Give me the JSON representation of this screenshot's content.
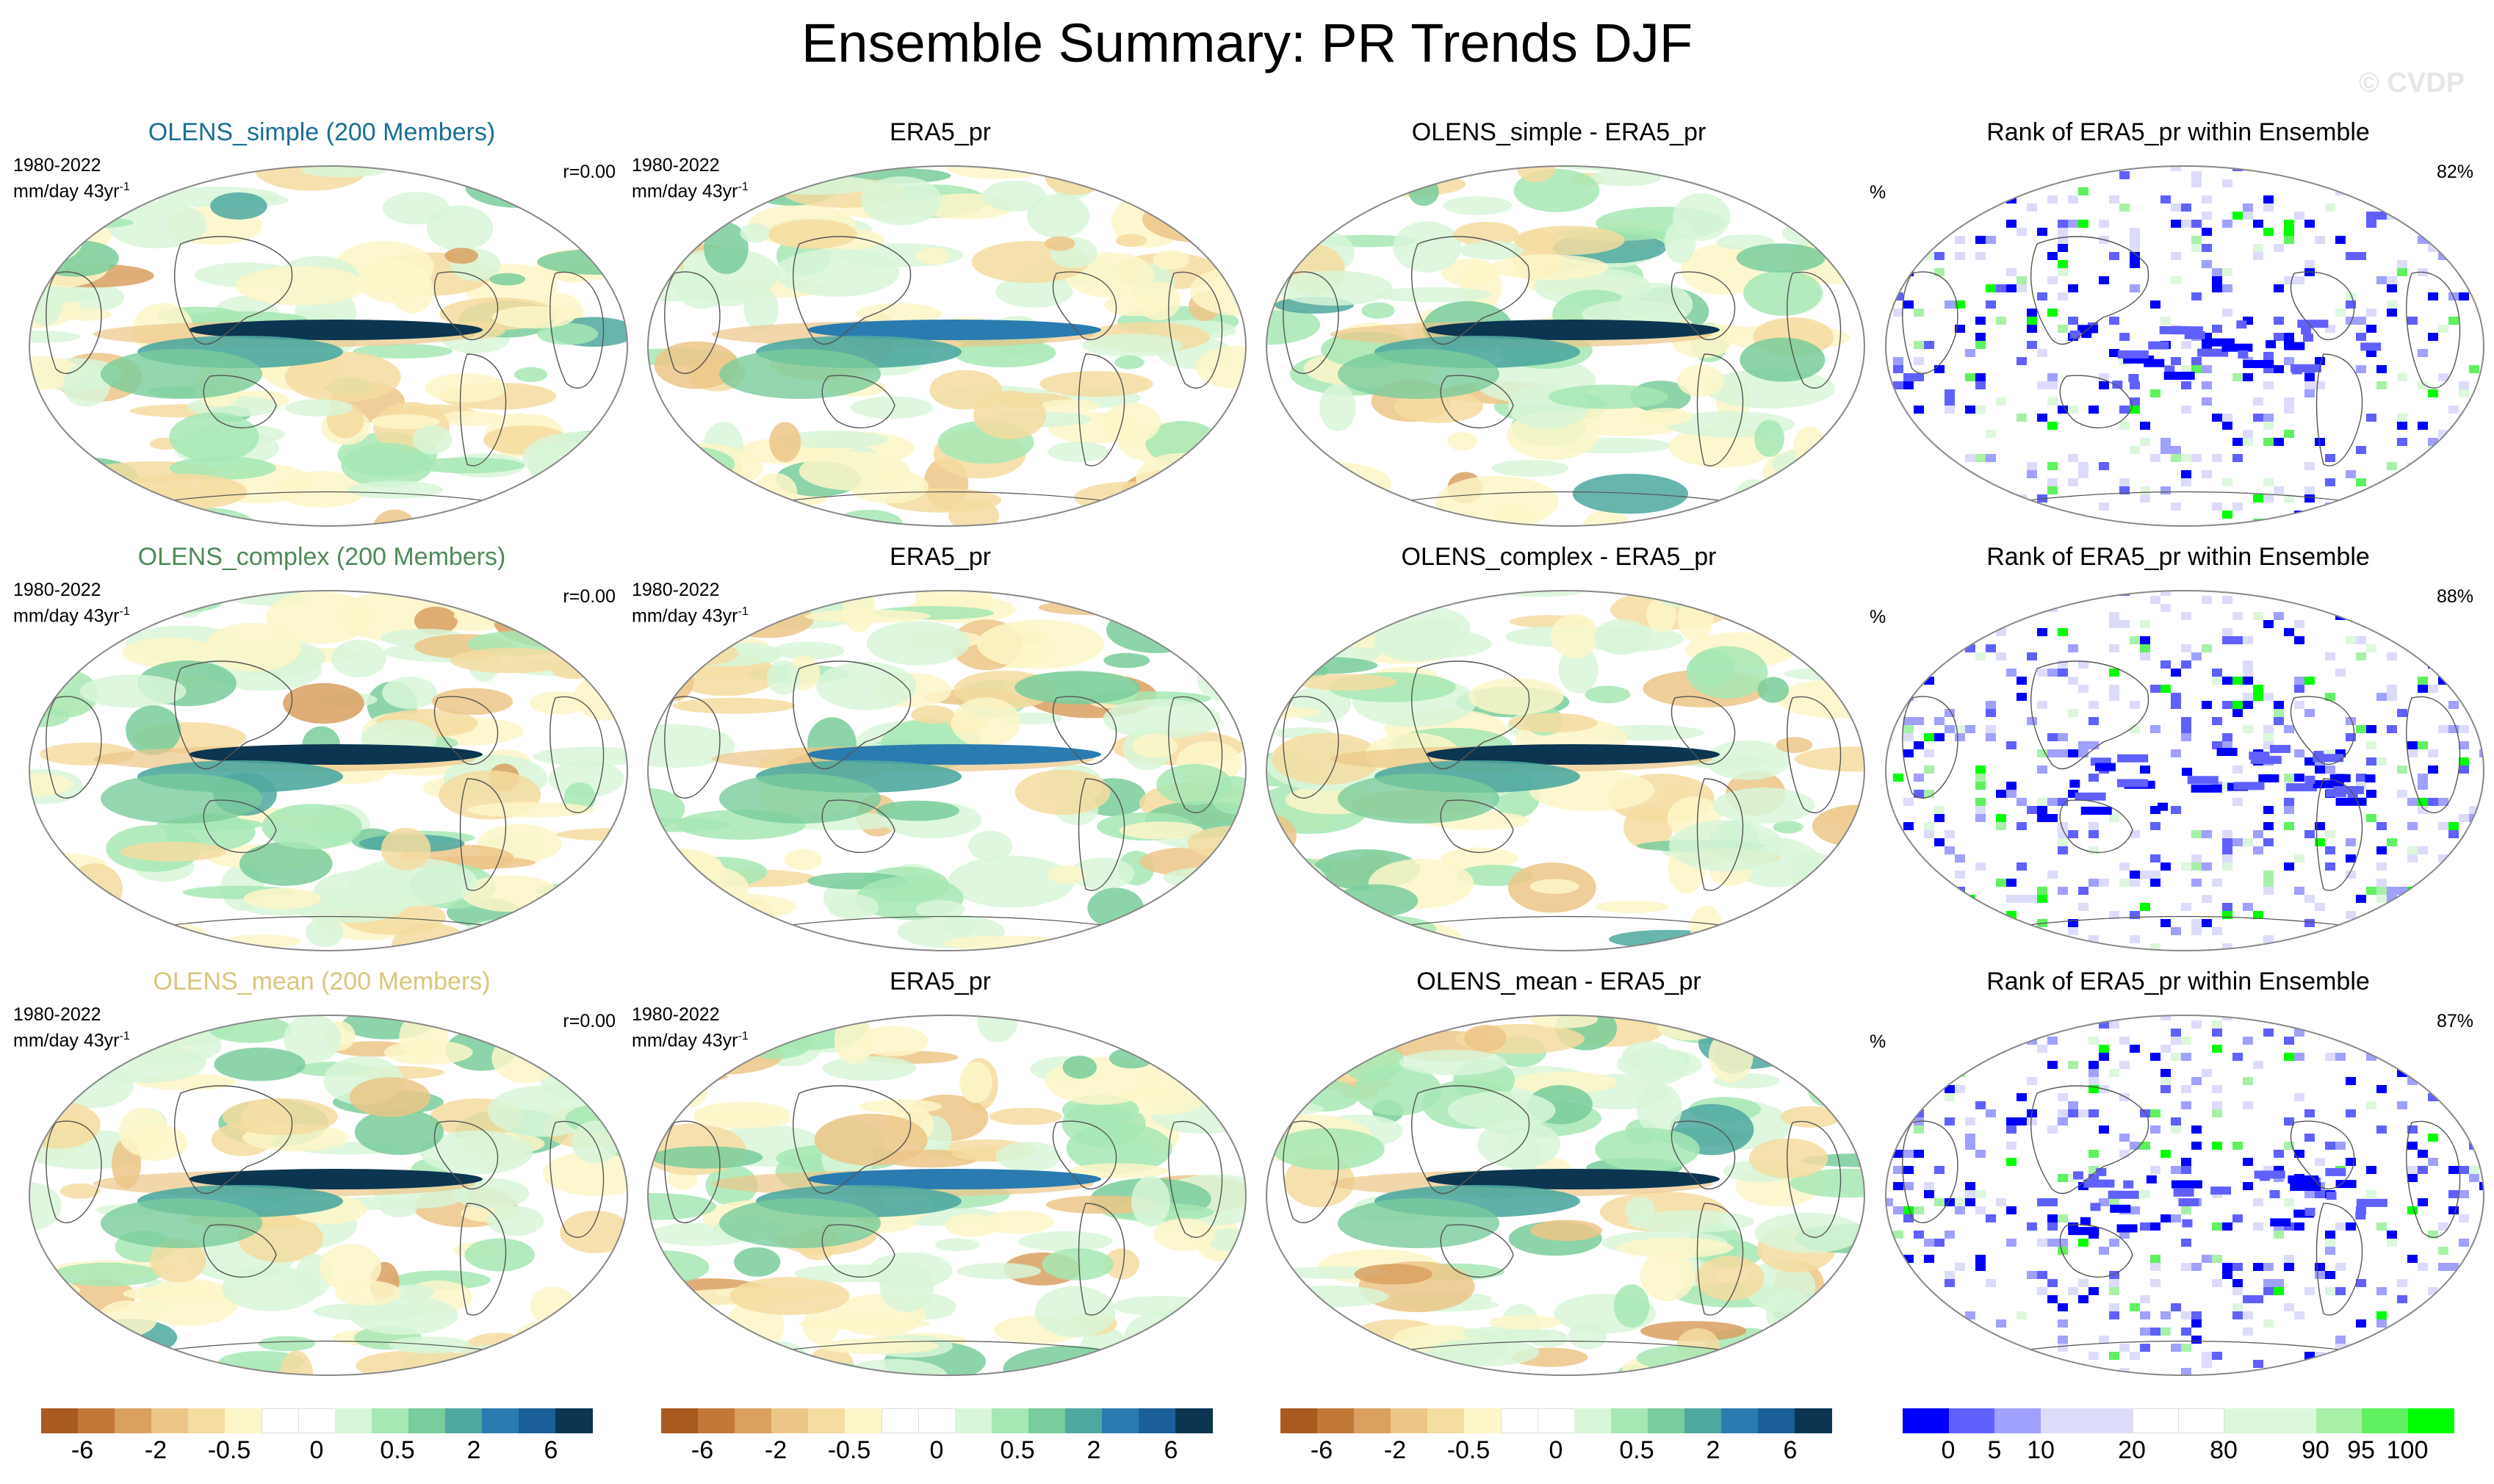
{
  "page": {
    "title": "Ensemble Summary: PR Trends DJF",
    "watermark": "© CVDP"
  },
  "colors": {
    "title_simple": "#1a6e94",
    "title_complex": "#4e8a5a",
    "title_mean": "#d8c77a",
    "land_outline": "#555555",
    "map_border": "#888888"
  },
  "rows": [
    {
      "model": {
        "title": "OLENS_simple (200 Members)",
        "period": "1980-2022",
        "units": "mm/day 43yr",
        "units_sup": "-1",
        "corr": "r=0.00",
        "title_color": "#1a6e94"
      },
      "obs": {
        "title": "ERA5_pr",
        "period": "1980-2022",
        "units": "mm/day 43yr",
        "units_sup": "-1"
      },
      "diff": {
        "title": "OLENS_simple - ERA5_pr"
      },
      "rank": {
        "title": "Rank of ERA5_pr within Ensemble",
        "unit": "%",
        "pct": "82%"
      }
    },
    {
      "model": {
        "title": "OLENS_complex (200 Members)",
        "period": "1980-2022",
        "units": "mm/day 43yr",
        "units_sup": "-1",
        "corr": "r=0.00",
        "title_color": "#4e8a5a"
      },
      "obs": {
        "title": "ERA5_pr",
        "period": "1980-2022",
        "units": "mm/day 43yr",
        "units_sup": "-1"
      },
      "diff": {
        "title": "OLENS_complex - ERA5_pr"
      },
      "rank": {
        "title": "Rank of ERA5_pr within Ensemble",
        "unit": "%",
        "pct": "88%"
      }
    },
    {
      "model": {
        "title": "OLENS_mean (200 Members)",
        "period": "1980-2022",
        "units": "mm/day 43yr",
        "units_sup": "-1",
        "corr": "r=0.00",
        "title_color": "#d8c77a"
      },
      "obs": {
        "title": "ERA5_pr",
        "period": "1980-2022",
        "units": "mm/day 43yr",
        "units_sup": "-1"
      },
      "diff": {
        "title": "OLENS_mean - ERA5_pr"
      },
      "rank": {
        "title": "Rank of ERA5_pr within Ensemble",
        "unit": "%",
        "pct": "87%"
      }
    }
  ],
  "colorbars": {
    "trend": {
      "colors": [
        "#a85a1f",
        "#c27837",
        "#d9a060",
        "#ecc687",
        "#f5dca0",
        "#fdf6c8",
        "#ffffff",
        "#ffffff",
        "#d8f6d8",
        "#a6e8b4",
        "#79cc9b",
        "#4ea8a0",
        "#2a7bb0",
        "#1a5f98",
        "#0b3550"
      ],
      "tick_labels": [
        "-6",
        "-2",
        "-0.5",
        "0",
        "0.5",
        "2",
        "6"
      ]
    },
    "rank": {
      "colors": [
        "#0000ff",
        "#6060ff",
        "#a0a0ff",
        "#dcdcfa",
        "#dcdcfa",
        "#ffffff",
        "#ffffff",
        "#dcf7dc",
        "#dcf7dc",
        "#a8f0a8",
        "#60f060",
        "#00ff00"
      ],
      "tick_labels": [
        "0",
        "5",
        "10",
        "20",
        "80",
        "90",
        "95",
        "100"
      ]
    }
  },
  "chart_data": [
    {
      "type": "heatmap",
      "title": "OLENS_simple (200 Members)",
      "field": "DJF precipitation trend",
      "units": "mm/day 43yr-1",
      "period": "1980-2022",
      "levels": [
        -6,
        -4,
        -2,
        -1,
        -0.5,
        -0.2,
        0,
        0.2,
        0.5,
        1,
        2,
        4,
        6
      ],
      "pattern_correlation": 0.0
    },
    {
      "type": "heatmap",
      "title": "ERA5_pr",
      "field": "DJF precipitation trend",
      "units": "mm/day 43yr-1",
      "period": "1980-2022",
      "levels": [
        -6,
        -4,
        -2,
        -1,
        -0.5,
        -0.2,
        0,
        0.2,
        0.5,
        1,
        2,
        4,
        6
      ]
    },
    {
      "type": "heatmap",
      "title": "OLENS_simple - ERA5_pr",
      "levels": [
        -6,
        -4,
        -2,
        -1,
        -0.5,
        -0.2,
        0,
        0.2,
        0.5,
        1,
        2,
        4,
        6
      ]
    },
    {
      "type": "heatmap",
      "title": "Rank of ERA5_pr within Ensemble",
      "units": "%",
      "levels": [
        0,
        5,
        10,
        20,
        80,
        90,
        95,
        100
      ],
      "area_within_10_90": 82
    },
    {
      "type": "heatmap",
      "title": "OLENS_complex (200 Members)",
      "field": "DJF precipitation trend",
      "units": "mm/day 43yr-1",
      "period": "1980-2022",
      "pattern_correlation": 0.0
    },
    {
      "type": "heatmap",
      "title": "ERA5_pr",
      "field": "DJF precipitation trend",
      "units": "mm/day 43yr-1",
      "period": "1980-2022"
    },
    {
      "type": "heatmap",
      "title": "OLENS_complex - ERA5_pr"
    },
    {
      "type": "heatmap",
      "title": "Rank of ERA5_pr within Ensemble",
      "units": "%",
      "area_within_10_90": 88
    },
    {
      "type": "heatmap",
      "title": "OLENS_mean (200 Members)",
      "field": "DJF precipitation trend",
      "units": "mm/day 43yr-1",
      "period": "1980-2022",
      "pattern_correlation": 0.0
    },
    {
      "type": "heatmap",
      "title": "ERA5_pr",
      "field": "DJF precipitation trend",
      "units": "mm/day 43yr-1",
      "period": "1980-2022"
    },
    {
      "type": "heatmap",
      "title": "OLENS_mean - ERA5_pr"
    },
    {
      "type": "heatmap",
      "title": "Rank of ERA5_pr within Ensemble",
      "units": "%",
      "area_within_10_90": 87
    }
  ]
}
